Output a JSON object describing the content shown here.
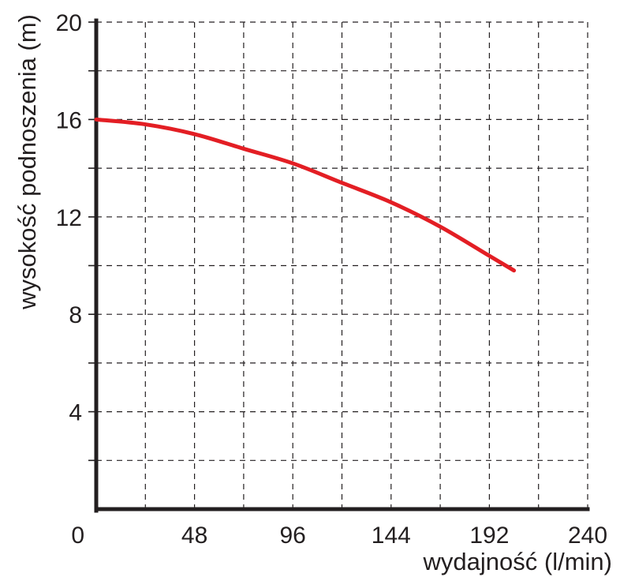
{
  "chart_data": {
    "type": "line",
    "title": "",
    "xlabel": "wydajność (l/min)",
    "ylabel": "wysokość podnoszenia (m)",
    "xlim": [
      0,
      240
    ],
    "ylim": [
      0,
      20
    ],
    "x_ticks": [
      0,
      48,
      96,
      144,
      192,
      240
    ],
    "y_ticks": [
      4,
      8,
      12,
      16,
      20
    ],
    "x_ticks_unlabeled": [
      24,
      72,
      120,
      168,
      216
    ],
    "y_ticks_unlabeled": [
      2,
      6,
      10,
      14,
      18
    ],
    "grid": true,
    "grid_style": "dashed",
    "legend": "none",
    "series": [
      {
        "color": "#e31e24",
        "x": [
          0,
          24,
          48,
          72,
          96,
          120,
          144,
          168,
          192,
          204
        ],
        "y": [
          16.0,
          15.8,
          15.4,
          14.8,
          14.2,
          13.4,
          12.6,
          11.6,
          10.4,
          9.8
        ]
      }
    ],
    "colors": {
      "axis": "#231f20",
      "grid": "#231f20",
      "text": "#231f20",
      "line": "#e31e24"
    }
  }
}
